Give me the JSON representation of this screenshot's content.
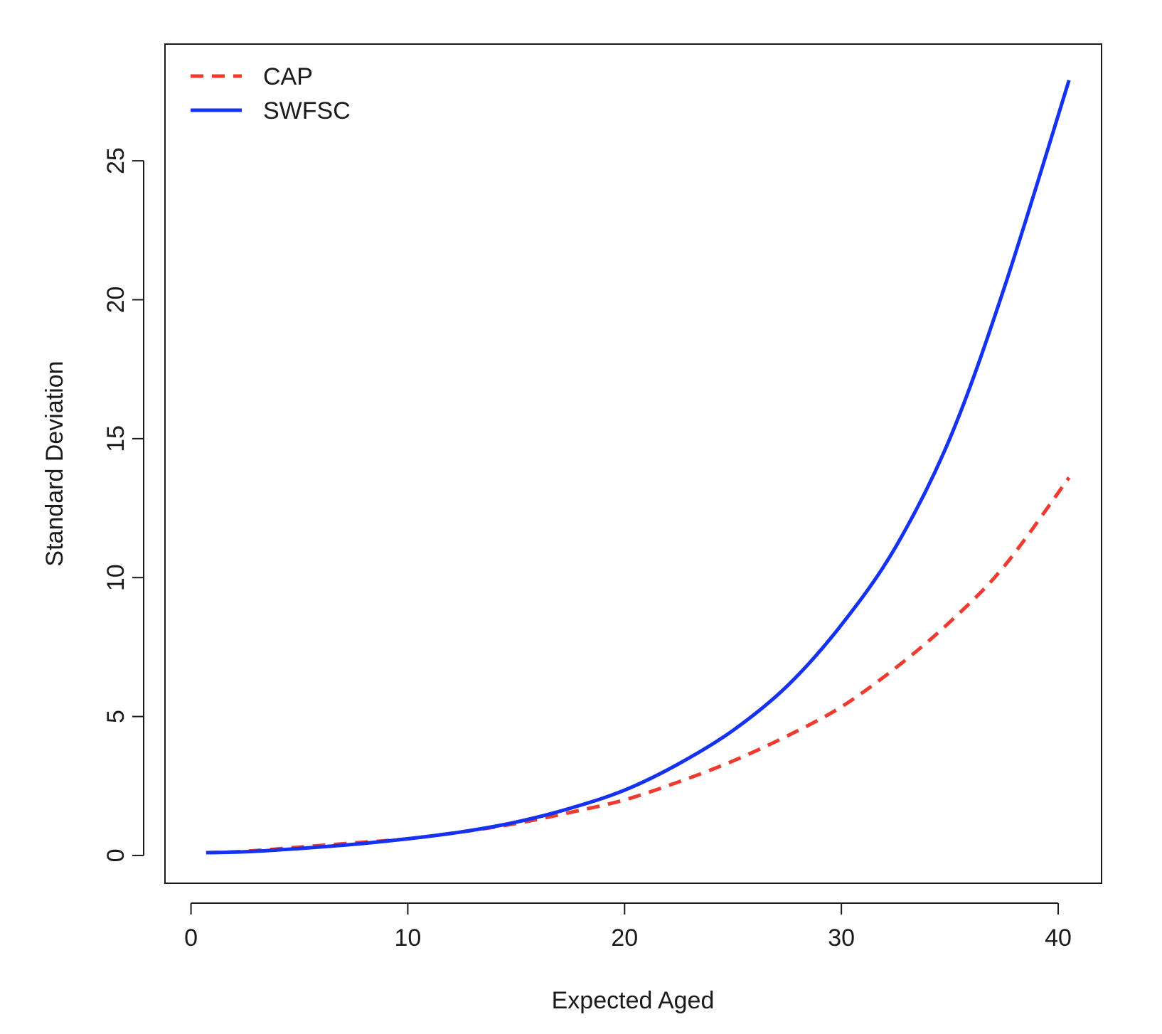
{
  "chart_data": {
    "type": "line",
    "xlabel": "Expected Aged",
    "ylabel": "Standard Deviation",
    "xlim": [
      -1.2,
      42
    ],
    "ylim": [
      -1.0,
      29.2
    ],
    "xticks": [
      0,
      10,
      20,
      30,
      40
    ],
    "yticks": [
      0,
      5,
      10,
      15,
      20,
      25
    ],
    "grid": false,
    "legend": {
      "position": "top-left"
    },
    "x": [
      0.7,
      2.5,
      5,
      7.5,
      10,
      12.5,
      15,
      17.5,
      20,
      22.5,
      25,
      27.5,
      30,
      32.5,
      35,
      37.5,
      40.5
    ],
    "series": [
      {
        "name": "CAP",
        "color": "#ee3b2f",
        "dash": "dashed",
        "values": [
          0.1,
          0.15,
          0.3,
          0.45,
          0.6,
          0.85,
          1.15,
          1.55,
          2.0,
          2.65,
          3.4,
          4.3,
          5.35,
          6.75,
          8.4,
          10.4,
          13.6
        ]
      },
      {
        "name": "SWFSC",
        "color": "#1432f0",
        "dash": "solid",
        "values": [
          0.1,
          0.13,
          0.25,
          0.4,
          0.6,
          0.85,
          1.2,
          1.7,
          2.35,
          3.3,
          4.5,
          6.1,
          8.3,
          11.1,
          15.0,
          20.4,
          27.9
        ]
      }
    ]
  }
}
